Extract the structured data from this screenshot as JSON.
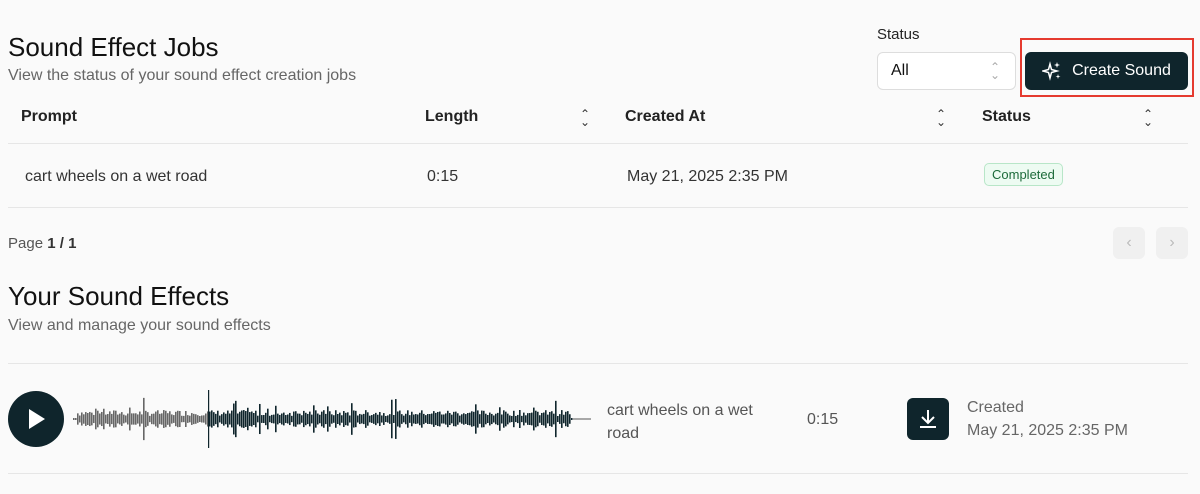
{
  "jobs": {
    "title": "Sound Effect Jobs",
    "subtitle": "View the status of your sound effect creation jobs",
    "filter": {
      "label": "Status",
      "value": "All"
    },
    "create_button": "Create Sound",
    "columns": [
      "Prompt",
      "Length",
      "Created At",
      "Status"
    ],
    "rows": [
      {
        "prompt": "cart wheels on a wet road",
        "length": "0:15",
        "created_at": "May 21, 2025 2:35 PM",
        "status": "Completed"
      }
    ],
    "page_label": "Page",
    "page": "1 / 1"
  },
  "effects": {
    "title": "Your Sound Effects",
    "subtitle": "View and manage your sound effects",
    "items": [
      {
        "name": "cart wheels on a wet road",
        "length": "0:15",
        "created_label": "Created",
        "created_at": "May 21, 2025 2:35 PM",
        "progress": 0.26
      }
    ]
  },
  "colors": {
    "primary": "#0f252c",
    "highlight": "#e53a2f",
    "success": "#1d6b3b"
  }
}
